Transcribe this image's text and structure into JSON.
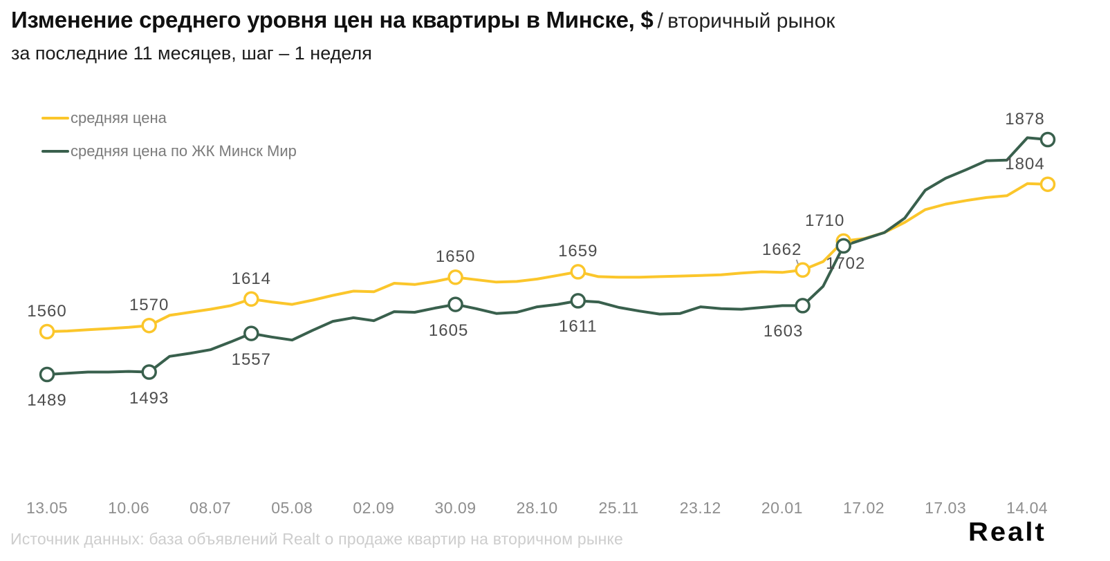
{
  "header": {
    "title_bold": "Изменение среднего уровня цен на квартиры в Минске, $",
    "title_separator": "/",
    "title_regular": "вторичный рынок",
    "subtitle": "за последние 11 месяцев, шаг – 1 неделя"
  },
  "legend": [
    {
      "label": "средняя цена",
      "color": "#FBC62B"
    },
    {
      "label": "средняя цена по ЖК Минск Мир",
      "color": "#39604D"
    }
  ],
  "chart_data": {
    "type": "line",
    "x_unit": "week",
    "x_tick_labels": [
      "13.05",
      "10.06",
      "08.07",
      "05.08",
      "02.09",
      "30.09",
      "28.10",
      "25.11",
      "23.12",
      "20.01",
      "17.02",
      "17.03",
      "14.04"
    ],
    "grid": false,
    "legend_position": "top-left",
    "ylim": [
      1480,
      1895
    ],
    "series": [
      {
        "name": "средняя цена",
        "color": "#FBC62B",
        "values": [
          1560,
          1561,
          1563,
          1565,
          1567,
          1570,
          1587,
          1592,
          1597,
          1603,
          1614,
          1609,
          1605,
          1612,
          1620,
          1627,
          1626,
          1640,
          1638,
          1643,
          1650,
          1646,
          1642,
          1643,
          1647,
          1653,
          1659,
          1651,
          1650,
          1650,
          1651,
          1652,
          1653,
          1654,
          1657,
          1659,
          1658,
          1662,
          1676,
          1710,
          1714,
          1724,
          1741,
          1762,
          1771,
          1777,
          1782,
          1785,
          1805,
          1804
        ],
        "labeled_points": [
          {
            "week": 0,
            "value": 1560,
            "pos": "above",
            "dx": 0
          },
          {
            "week": 5,
            "value": 1570,
            "pos": "above",
            "dx": 0
          },
          {
            "week": 10,
            "value": 1614,
            "pos": "above",
            "dx": 0
          },
          {
            "week": 20,
            "value": 1650,
            "pos": "above",
            "dx": 0
          },
          {
            "week": 26,
            "value": 1659,
            "pos": "above",
            "dx": 0
          },
          {
            "week": 37,
            "value": 1662,
            "pos": "above",
            "dx": -30,
            "leader": true
          },
          {
            "week": 39,
            "value": 1710,
            "pos": "above",
            "dx": -27
          },
          {
            "week": 49,
            "value": 1804,
            "pos": "above",
            "dx": -33
          }
        ]
      },
      {
        "name": "средняя цена по ЖК Минск Мир",
        "color": "#39604D",
        "values": [
          1489,
          1491,
          1493,
          1493,
          1494,
          1493,
          1519,
          1524,
          1530,
          1543,
          1557,
          1551,
          1546,
          1562,
          1577,
          1583,
          1578,
          1593,
          1592,
          1599,
          1605,
          1598,
          1590,
          1592,
          1601,
          1605,
          1611,
          1609,
          1600,
          1594,
          1589,
          1590,
          1601,
          1598,
          1597,
          1600,
          1603,
          1603,
          1635,
          1702,
          1713,
          1724,
          1748,
          1794,
          1814,
          1828,
          1843,
          1844,
          1881,
          1878
        ],
        "labeled_points": [
          {
            "week": 0,
            "value": 1489,
            "pos": "below",
            "dx": 0
          },
          {
            "week": 5,
            "value": 1493,
            "pos": "below",
            "dx": 0
          },
          {
            "week": 10,
            "value": 1557,
            "pos": "below",
            "dx": 0
          },
          {
            "week": 20,
            "value": 1605,
            "pos": "below",
            "dx": -10
          },
          {
            "week": 26,
            "value": 1611,
            "pos": "below",
            "dx": 0
          },
          {
            "week": 37,
            "value": 1603,
            "pos": "below",
            "dx": -28
          },
          {
            "week": 39,
            "value": 1702,
            "pos": "below",
            "dx": 3,
            "dy": 12
          },
          {
            "week": 49,
            "value": 1878,
            "pos": "above",
            "dx": -33
          }
        ]
      }
    ]
  },
  "footer": {
    "source": "Источник данных: база объявлений Realt о продаже квартир на вторичном рынке",
    "logo": "Realt"
  }
}
